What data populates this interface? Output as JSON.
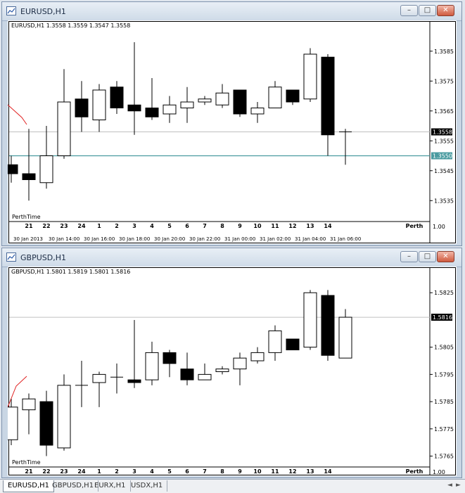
{
  "windows": [
    {
      "title": "EURUSD,H1",
      "chart_data": {
        "type": "candlestick",
        "symbol_info": "EURUSD,H1  1.3558 1.3559 1.3547 1.3558",
        "ylim": [
          1.3528,
          1.3592
        ],
        "y_ticks": [
          "1.3585",
          "1.3575",
          "1.3565",
          "1.3555",
          "1.3545",
          "1.3535"
        ],
        "hour_labels": [
          "21",
          "22",
          "23",
          "24",
          "1",
          "2",
          "3",
          "4",
          "5",
          "6",
          "7",
          "8",
          "9",
          "10",
          "11",
          "12",
          "13",
          "14"
        ],
        "timezone_label": "Perth",
        "date_labels": [
          "30 Jan 2013",
          "30 Jan 14:00",
          "30 Jan 16:00",
          "30 Jan 18:00",
          "30 Jan 20:00",
          "30 Jan 22:00",
          "31 Jan 00:00",
          "31 Jan 02:00",
          "31 Jan 04:00",
          "31 Jan 06:00"
        ],
        "candles": [
          {
            "o": 1.3547,
            "h": 1.355,
            "l": 1.3541,
            "c": 1.3544
          },
          {
            "o": 1.3544,
            "h": 1.3559,
            "l": 1.3535,
            "c": 1.3542
          },
          {
            "o": 1.3541,
            "h": 1.356,
            "l": 1.3539,
            "c": 1.355
          },
          {
            "o": 1.355,
            "h": 1.3579,
            "l": 1.3549,
            "c": 1.3568
          },
          {
            "o": 1.3569,
            "h": 1.3575,
            "l": 1.3558,
            "c": 1.3563
          },
          {
            "o": 1.3562,
            "h": 1.3574,
            "l": 1.3558,
            "c": 1.3572
          },
          {
            "o": 1.3573,
            "h": 1.3575,
            "l": 1.3564,
            "c": 1.3566
          },
          {
            "o": 1.3567,
            "h": 1.3588,
            "l": 1.3557,
            "c": 1.3565
          },
          {
            "o": 1.3566,
            "h": 1.3576,
            "l": 1.3562,
            "c": 1.3563
          },
          {
            "o": 1.3564,
            "h": 1.357,
            "l": 1.3561,
            "c": 1.3567
          },
          {
            "o": 1.3566,
            "h": 1.3573,
            "l": 1.3561,
            "c": 1.3568
          },
          {
            "o": 1.3568,
            "h": 1.357,
            "l": 1.3567,
            "c": 1.3569
          },
          {
            "o": 1.3567,
            "h": 1.3574,
            "l": 1.3566,
            "c": 1.3571
          },
          {
            "o": 1.3572,
            "h": 1.3572,
            "l": 1.3563,
            "c": 1.3564
          },
          {
            "o": 1.3564,
            "h": 1.3568,
            "l": 1.3561,
            "c": 1.3566
          },
          {
            "o": 1.3566,
            "h": 1.3575,
            "l": 1.3566,
            "c": 1.3573
          },
          {
            "o": 1.3572,
            "h": 1.3572,
            "l": 1.3567,
            "c": 1.3568
          },
          {
            "o": 1.3569,
            "h": 1.3586,
            "l": 1.3568,
            "c": 1.3584
          },
          {
            "o": 1.3583,
            "h": 1.3584,
            "l": 1.355,
            "c": 1.3557
          },
          {
            "o": 1.3558,
            "h": 1.3559,
            "l": 1.3547,
            "c": 1.3558
          }
        ],
        "bid_line": 1.3558,
        "bid_label": "1.3558",
        "hline": 1.355,
        "hline_label": "1.3550",
        "colors": {
          "candle": "#000000",
          "bull_fill": "#ffffff",
          "bear_fill": "#000000",
          "grid_line": "#c0c0c0",
          "hline": "#4a9ba0",
          "indicator": "#e02020"
        }
      }
    },
    {
      "title": "GBPUSD,H1",
      "chart_data": {
        "type": "candlestick",
        "symbol_info": "GBPUSD,H1  1.5801 1.5819 1.5801 1.5816",
        "ylim": [
          1.5761,
          1.5831
        ],
        "y_ticks": [
          "1.5825",
          "1.5805",
          "1.5795",
          "1.5785",
          "1.5775",
          "1.5765"
        ],
        "hour_labels": [
          "21",
          "22",
          "23",
          "24",
          "1",
          "2",
          "3",
          "4",
          "5",
          "6",
          "7",
          "8",
          "9",
          "10",
          "11",
          "12",
          "13",
          "14"
        ],
        "timezone_label": "Perth",
        "candles": [
          {
            "o": 1.5771,
            "h": 1.5786,
            "l": 1.5769,
            "c": 1.5783
          },
          {
            "o": 1.5782,
            "h": 1.5788,
            "l": 1.5773,
            "c": 1.5786
          },
          {
            "o": 1.5785,
            "h": 1.5789,
            "l": 1.5765,
            "c": 1.5769
          },
          {
            "o": 1.5768,
            "h": 1.5795,
            "l": 1.5767,
            "c": 1.5791
          },
          {
            "o": 1.5791,
            "h": 1.58,
            "l": 1.5783,
            "c": 1.5791
          },
          {
            "o": 1.5792,
            "h": 1.5796,
            "l": 1.5783,
            "c": 1.5795
          },
          {
            "o": 1.5794,
            "h": 1.5799,
            "l": 1.5788,
            "c": 1.5794
          },
          {
            "o": 1.5793,
            "h": 1.5815,
            "l": 1.579,
            "c": 1.5792
          },
          {
            "o": 1.5793,
            "h": 1.5807,
            "l": 1.5791,
            "c": 1.5803
          },
          {
            "o": 1.5803,
            "h": 1.5804,
            "l": 1.5794,
            "c": 1.5799
          },
          {
            "o": 1.5797,
            "h": 1.5803,
            "l": 1.5791,
            "c": 1.5793
          },
          {
            "o": 1.5793,
            "h": 1.5799,
            "l": 1.5793,
            "c": 1.5795
          },
          {
            "o": 1.5796,
            "h": 1.5798,
            "l": 1.5795,
            "c": 1.5797
          },
          {
            "o": 1.5797,
            "h": 1.5803,
            "l": 1.5791,
            "c": 1.5801
          },
          {
            "o": 1.58,
            "h": 1.5805,
            "l": 1.5799,
            "c": 1.5803
          },
          {
            "o": 1.5803,
            "h": 1.5813,
            "l": 1.58,
            "c": 1.5811
          },
          {
            "o": 1.5808,
            "h": 1.5808,
            "l": 1.5804,
            "c": 1.5804
          },
          {
            "o": 1.5805,
            "h": 1.5826,
            "l": 1.5804,
            "c": 1.5825
          },
          {
            "o": 1.5824,
            "h": 1.5826,
            "l": 1.58,
            "c": 1.5802
          },
          {
            "o": 1.5801,
            "h": 1.5819,
            "l": 1.5801,
            "c": 1.5816
          }
        ],
        "bid_line": 1.5816,
        "bid_label": "1.5816",
        "colors": {
          "candle": "#000000",
          "bull_fill": "#ffffff",
          "bear_fill": "#000000",
          "grid_line": "#c0c0c0",
          "indicator": "#e02020"
        }
      }
    }
  ],
  "tabs": [
    "EURUSD,H1",
    "GBPUSD,H1",
    "EURX,H1",
    "USDX,H1"
  ],
  "footer_labels": {
    "perth_time": "PerthTime",
    "corner_value": "1.00"
  },
  "window_buttons": {
    "minimize": "–",
    "maximize": "□",
    "close": "✕"
  },
  "tab_scroll": {
    "left": "◄",
    "right": "►"
  }
}
